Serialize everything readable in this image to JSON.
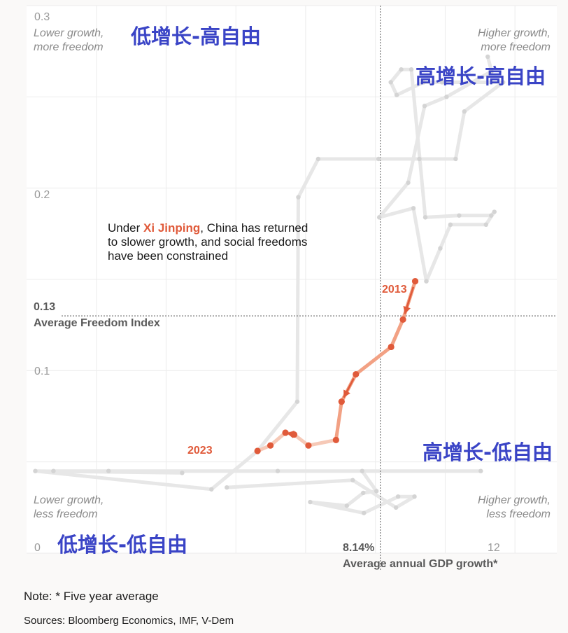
{
  "chart_data": {
    "type": "line",
    "xlabel": "Average annual GDP growth*",
    "ylabel": "",
    "xlim": [
      -2,
      13.2
    ],
    "ylim": [
      0,
      0.3
    ],
    "xticks": [
      {
        "value": 8.14,
        "label": "8.14%"
      },
      {
        "value": 12,
        "label": "12"
      }
    ],
    "yticks": [
      {
        "value": 0.3,
        "label": "0.3"
      },
      {
        "value": 0.2,
        "label": "0.2"
      },
      {
        "value": 0.13,
        "label": "0.13"
      },
      {
        "value": 0.1,
        "label": "0.1"
      },
      {
        "value": 0,
        "label": "0"
      }
    ],
    "grid": true,
    "averages": {
      "x": 8.14,
      "x_label": "8.14%",
      "y": 0.13,
      "y_label": "0.13",
      "y_name": "Average Freedom Index"
    },
    "corner_labels": {
      "top_left": [
        "Lower growth,",
        "more freedom"
      ],
      "top_right": [
        "Higher growth,",
        "more freedom"
      ],
      "bottom_left": [
        "Lower growth,",
        "less freedom"
      ],
      "bottom_right": [
        "Higher growth,",
        "less freedom"
      ]
    },
    "quadrant_labels": {
      "top_left": "低增长-高自由",
      "top_right": "高增长-高自由",
      "bottom_right": "高增长-低自由",
      "bottom_left": "低增长-低自由"
    },
    "annotation": {
      "pre": "Under ",
      "highlight": "Xi Jinping",
      "line1_post": ", China has returned",
      "line2": "to slower growth, and social freedoms",
      "line3": "have been constrained"
    },
    "series": [
      {
        "label_start": "2013",
        "label_end": "2023",
        "highlight": true,
        "points": [
          [
            9.14,
            0.149
          ],
          [
            8.79,
            0.128
          ],
          [
            8.45,
            0.113
          ],
          [
            7.44,
            0.098
          ],
          [
            7.03,
            0.083
          ],
          [
            6.87,
            0.062
          ],
          [
            6.08,
            0.059
          ],
          [
            5.67,
            0.065
          ],
          [
            5.42,
            0.066
          ],
          [
            4.99,
            0.059
          ],
          [
            4.62,
            0.056
          ]
        ]
      },
      {
        "highlight": false,
        "points": [
          [
            4.62,
            0.056
          ],
          [
            5.76,
            0.083
          ],
          [
            5.79,
            0.195
          ],
          [
            6.36,
            0.216
          ],
          [
            8.09,
            0.216
          ],
          [
            9.26,
            0.216
          ],
          [
            10.3,
            0.216
          ],
          [
            10.55,
            0.242
          ],
          [
            11.66,
            0.258
          ],
          [
            9.91,
            0.258
          ],
          [
            9.38,
            0.258
          ],
          [
            8.61,
            0.251
          ],
          [
            8.44,
            0.258
          ],
          [
            8.74,
            0.265
          ],
          [
            9.03,
            0.265
          ],
          [
            9.43,
            0.184
          ],
          [
            10.4,
            0.185
          ],
          [
            11.32,
            0.185
          ],
          [
            11.41,
            0.187
          ],
          [
            11.17,
            0.18
          ],
          [
            10.15,
            0.18
          ],
          [
            9.86,
            0.167
          ],
          [
            9.46,
            0.149
          ]
        ]
      },
      {
        "highlight": false,
        "points": [
          [
            4.62,
            0.056
          ],
          [
            3.3,
            0.035
          ],
          [
            -1.75,
            0.045
          ],
          [
            2.46,
            0.044
          ],
          [
            0.35,
            0.045
          ],
          [
            -1.23,
            0.045
          ],
          [
            5.2,
            0.045
          ],
          [
            11.02,
            0.045
          ],
          [
            7.62,
            0.045
          ],
          [
            8.03,
            0.034
          ],
          [
            7.65,
            0.033
          ],
          [
            7.18,
            0.026
          ],
          [
            6.13,
            0.028
          ],
          [
            7.67,
            0.022
          ],
          [
            8.65,
            0.031
          ],
          [
            9.12,
            0.031
          ],
          [
            8.59,
            0.025
          ],
          [
            7.35,
            0.04
          ],
          [
            3.74,
            0.036
          ]
        ]
      },
      {
        "highlight": false,
        "points": [
          [
            9.46,
            0.149
          ],
          [
            9.09,
            0.189
          ],
          [
            8.11,
            0.184
          ],
          [
            8.94,
            0.203
          ],
          [
            9.41,
            0.245
          ],
          [
            10.04,
            0.25
          ],
          [
            11.33,
            0.264
          ],
          [
            11.22,
            0.272
          ]
        ]
      }
    ]
  },
  "note": "Note: * Five year average",
  "sources": "Sources: Bloomberg Economics, IMF, V-Dem"
}
